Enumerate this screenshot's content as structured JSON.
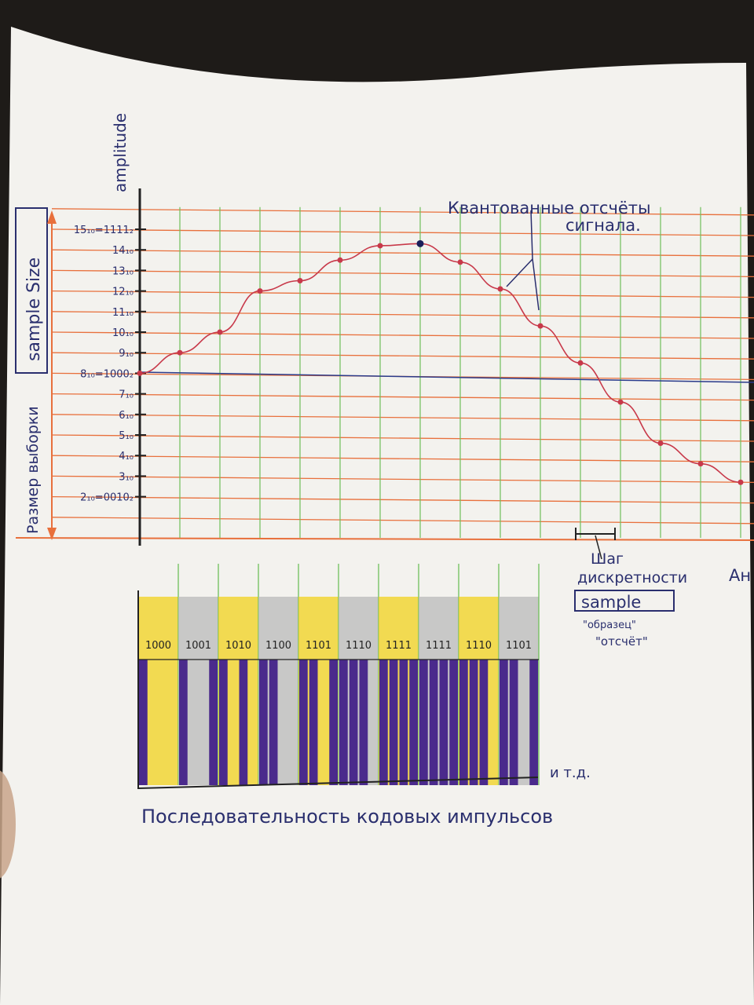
{
  "labels": {
    "amplitude": "amplitude",
    "sample_size": "sample Size",
    "sample_size_ru": "Размер выборки",
    "quantized": [
      "Квантованные отсчёты",
      "сигнала."
    ],
    "step": [
      "Шаг",
      "дискретности"
    ],
    "sample": "sample",
    "sample_ru": [
      "\"образец\"",
      "\"отсчёт\""
    ],
    "etc": "и т.д.",
    "sequence": "Последовательность кодовых импульсов",
    "cut_label": "Ан"
  },
  "y_ticks": [
    "15₁₀=1111₂",
    "14₁₀",
    "13₁₀",
    "12₁₀",
    "11₁₀",
    "10₁₀",
    "9₁₀",
    "8₁₀=1000₂",
    "7₁₀",
    "6₁₀",
    "5₁₀",
    "4₁₀",
    "3₁₀",
    "2₁₀=0010₂"
  ],
  "chart_data": {
    "type": "scatter",
    "ylabel": "amplitude",
    "ylim": [
      0,
      16
    ],
    "samples": [
      8,
      9,
      10,
      12,
      12.5,
      13.5,
      14.2,
      14.3,
      13.4,
      12.1,
      10.3,
      8.5,
      6.6,
      4.6,
      3.6,
      2.7
    ],
    "codes": [
      "1000",
      "1001",
      "1010",
      "1100",
      "1101",
      "1110",
      "1111",
      "1111",
      "1110",
      "1101"
    ]
  },
  "colors": {
    "grid_h": "#e8703c",
    "grid_v": "#6fbf5a",
    "curve": "#c8394a",
    "ink": "#2a2f6e",
    "purple": "#4a2a8c",
    "yellow": "#f2d21c",
    "gray": "#b9b9b9"
  }
}
